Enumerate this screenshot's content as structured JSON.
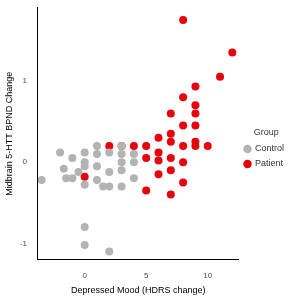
{
  "chart_data": {
    "type": "scatter",
    "x_label": "Depressed Mood (HDRS change)",
    "y_label": "Midbrain 5-HTT BPND Change",
    "legend_title": "Group",
    "legend": "right",
    "grid": false,
    "xlim": [
      -3.8,
      12.5
    ],
    "xticks": [
      0,
      5,
      10
    ],
    "ylim": [
      -1.2,
      1.9
    ],
    "yticks": [
      -1,
      0,
      1
    ],
    "series": [
      {
        "name": "Control",
        "color": "#b3b3b3",
        "marker": "circle",
        "x": [
          -3.5,
          -2,
          -1.7,
          -1.5,
          -1,
          -1,
          -0.5,
          0,
          0,
          0,
          0,
          0,
          0,
          1,
          1,
          1,
          1,
          1.5,
          2,
          2,
          2,
          2,
          3,
          3,
          3,
          3,
          3,
          4,
          4,
          4
        ],
        "values": [
          -0.22,
          0.12,
          -0.08,
          -0.2,
          0.05,
          -0.2,
          -0.12,
          0,
          0.12,
          -0.05,
          -0.28,
          -0.8,
          -1.02,
          0.1,
          0.2,
          -0.05,
          -0.22,
          -0.3,
          0.12,
          -0.12,
          -0.3,
          -1.1,
          0.1,
          0.2,
          0,
          -0.1,
          -0.3,
          0.1,
          0,
          -0.2
        ]
      },
      {
        "name": "Patient",
        "color": "#e8000b",
        "marker": "circle",
        "x": [
          0,
          2,
          3,
          4,
          5,
          5,
          5,
          6,
          6,
          6,
          6,
          7,
          7,
          7,
          7,
          7,
          7,
          8,
          8,
          8,
          8,
          8,
          8,
          9,
          9,
          9,
          9,
          9,
          9,
          10,
          11,
          12
        ],
        "values": [
          -0.18,
          0.2,
          0.2,
          0.2,
          0.2,
          -0.35,
          0.05,
          0.02,
          -0.15,
          0.3,
          0.12,
          0.35,
          0.6,
          0.25,
          0.05,
          -0.1,
          -0.4,
          1.75,
          0.8,
          0.45,
          0.2,
          0,
          -0.25,
          0.93,
          0.7,
          0.6,
          0.45,
          0.2,
          0.25,
          0.2,
          1.05,
          1.35
        ]
      }
    ]
  }
}
